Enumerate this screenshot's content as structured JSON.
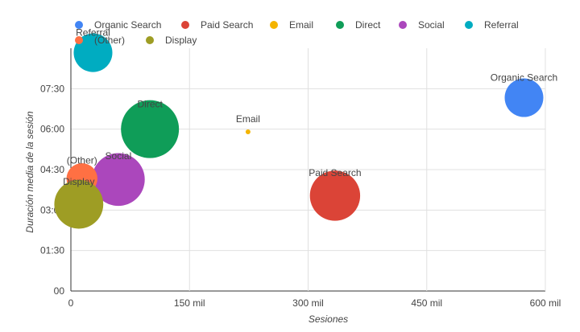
{
  "chart_data": {
    "type": "scatter",
    "bubble": true,
    "xlabel": "Sesiones",
    "ylabel": "Duración media de la sesión",
    "xlim": [
      0,
      600
    ],
    "ylim": [
      0,
      540
    ],
    "x_ticks": [
      0,
      150,
      300,
      450,
      600
    ],
    "x_tick_labels": [
      "0",
      "150 mil",
      "300 mil",
      "450 mil",
      "600 mil"
    ],
    "y_ticks": [
      0,
      90,
      180,
      270,
      360,
      450
    ],
    "y_tick_labels": [
      "00",
      "01:30",
      "03:00",
      "04:30",
      "06:00",
      "07:30"
    ],
    "grid": true,
    "legend_position": "top",
    "series": [
      {
        "name": "Organic Search",
        "label": "Organic Search",
        "x": 573,
        "y": 430,
        "size": 0.6,
        "color": "#4285f4"
      },
      {
        "name": "Paid Search",
        "label": "Paid Search",
        "x": 334,
        "y": 212,
        "size": 0.78,
        "color": "#db4437"
      },
      {
        "name": "Email",
        "label": "Email",
        "x": 224,
        "y": 354,
        "size": 0.04,
        "color": "#f4b400"
      },
      {
        "name": "Direct",
        "label": "Direct",
        "x": 100,
        "y": 360,
        "size": 0.9,
        "color": "#0f9d58"
      },
      {
        "name": "Social",
        "label": "Social",
        "x": 60,
        "y": 248,
        "size": 0.82,
        "color": "#ab47bc"
      },
      {
        "name": "Referral",
        "label": "Referral",
        "x": 28,
        "y": 530,
        "size": 0.6,
        "color": "#00acc1"
      },
      {
        "name": "(Other)",
        "label": "(Other)",
        "x": 14,
        "y": 250,
        "size": 0.48,
        "color": "#ff7043"
      },
      {
        "name": "Display",
        "label": "Display",
        "x": 10,
        "y": 193,
        "size": 0.76,
        "color": "#9e9d24"
      }
    ]
  }
}
